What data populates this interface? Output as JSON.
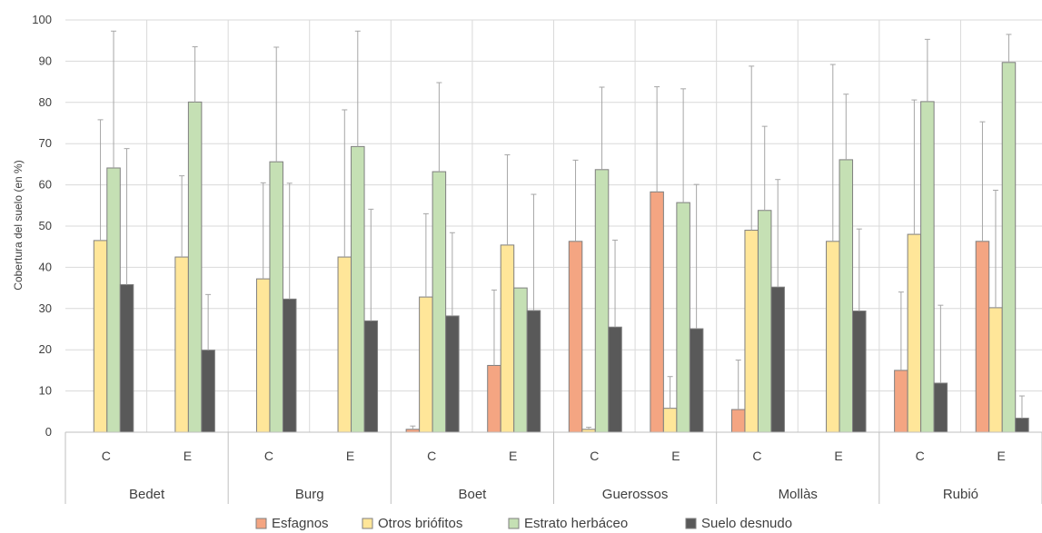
{
  "chart_data": {
    "type": "bar",
    "ylabel": "Cobertura del suelo  (en %)",
    "ylim": [
      0,
      100
    ],
    "yticks": [
      0,
      10,
      20,
      30,
      40,
      50,
      60,
      70,
      80,
      90,
      100
    ],
    "grid": true,
    "legend_position": "bottom",
    "sites": [
      "Bedet",
      "Burg",
      "Boet",
      "Guerossos",
      "Mollàs",
      "Rubió"
    ],
    "treatments": [
      "C",
      "E"
    ],
    "series": [
      {
        "name": "Esfagnos",
        "color": "#F4A582",
        "values": [
          0,
          0,
          0,
          0,
          0.7,
          16.2,
          46.3,
          58.3,
          5.5,
          0,
          15,
          46.3
        ],
        "errors": [
          0,
          0,
          0,
          0,
          1.5,
          34.5,
          66,
          83.8,
          17.5,
          0,
          34,
          75.3
        ]
      },
      {
        "name": "Otros briófitos",
        "color": "#FFE699",
        "values": [
          46.5,
          42.5,
          37.2,
          42.5,
          32.8,
          45.4,
          0.7,
          5.8,
          49,
          46.3,
          48,
          30.2
        ],
        "errors": [
          75.8,
          62.2,
          60.5,
          78.2,
          53,
          67.3,
          1.2,
          13.5,
          88.8,
          89.2,
          80.6,
          58.7
        ]
      },
      {
        "name": "Estrato herbáceo",
        "color": "#C5E0B4",
        "values": [
          64.1,
          80.1,
          65.6,
          69.3,
          63.2,
          35,
          63.7,
          55.7,
          53.8,
          66.1,
          80.2,
          89.7
        ],
        "errors": [
          97.3,
          93.5,
          93.4,
          97.3,
          84.8,
          35,
          83.7,
          83.3,
          74.2,
          82,
          95.3,
          96.5
        ]
      },
      {
        "name": "Suelo desnudo",
        "color": "#595959",
        "values": [
          35.8,
          19.9,
          32.3,
          27,
          28.2,
          29.5,
          25.5,
          25.1,
          35.2,
          29.4,
          11.9,
          3.4
        ],
        "errors": [
          68.8,
          33.4,
          60.4,
          54.1,
          48.4,
          57.7,
          46.6,
          60.1,
          61.3,
          49.3,
          30.8,
          8.8
        ]
      }
    ]
  }
}
